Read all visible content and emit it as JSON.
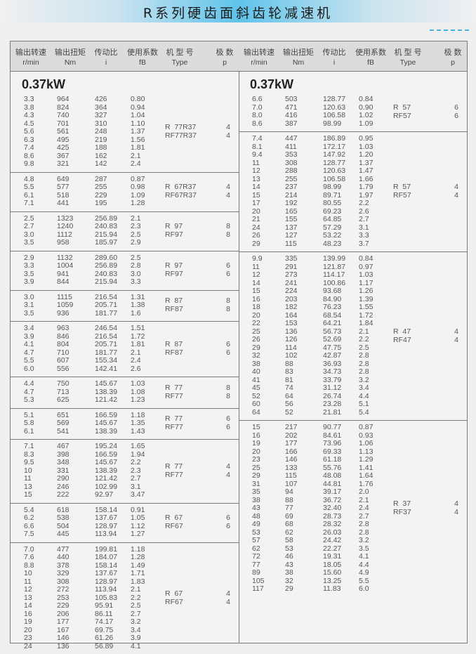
{
  "title": "R系列硬齿面斜齿轮减速机",
  "colors": {
    "banner_accent": "#5fc3ea",
    "dash_accent": "#3fb4dd",
    "header_bg": "#dcdcdc"
  },
  "headers": [
    {
      "zh": "输出转速",
      "en": "r/min"
    },
    {
      "zh": "输出扭矩",
      "en": "Nm"
    },
    {
      "zh": "传动比",
      "en": "i"
    },
    {
      "zh": "使用系数",
      "en": "fB"
    },
    {
      "zh": "机 型 号",
      "en": "Type"
    },
    {
      "zh": "极  数",
      "en": "p"
    }
  ],
  "left": {
    "power": "0.37kW",
    "groups": [
      {
        "type": [
          "R  77R37",
          "RF77R37"
        ],
        "poles": [
          "4",
          "4"
        ],
        "rows": [
          [
            "3.3",
            "964",
            "426",
            "0.80"
          ],
          [
            "3.8",
            "824",
            "364",
            "0.94"
          ],
          [
            "4.3",
            "740",
            "327",
            "1.04"
          ],
          [
            "4.5",
            "701",
            "310",
            "1.10"
          ],
          [
            "5.6",
            "561",
            "248",
            "1.37"
          ],
          [
            "6.3",
            "495",
            "219",
            "1.56"
          ],
          [
            "7.4",
            "425",
            "188",
            "1.81"
          ],
          [
            "8.6",
            "367",
            "162",
            "2.1"
          ],
          [
            "9.8",
            "321",
            "142",
            "2.4"
          ]
        ]
      },
      {
        "type": [
          "R  67R37",
          "RF67R37"
        ],
        "poles": [
          "4",
          "4"
        ],
        "rows": [
          [
            "4.8",
            "649",
            "287",
            "0.87"
          ],
          [
            "5.5",
            "577",
            "255",
            "0.98"
          ],
          [
            "6.1",
            "518",
            "229",
            "1.09"
          ],
          [
            "7.1",
            "441",
            "195",
            "1.28"
          ]
        ]
      },
      {
        "type": [
          "R  97",
          "RF97"
        ],
        "poles": [
          "8",
          "8"
        ],
        "rows": [
          [
            "2.5",
            "1323",
            "256.89",
            "2.1"
          ],
          [
            "2.7",
            "1240",
            "240.83",
            "2.3"
          ],
          [
            "3.0",
            "1112",
            "215.94",
            "2.5"
          ],
          [
            "3.5",
            "958",
            "185.97",
            "2.9"
          ]
        ]
      },
      {
        "type": [
          "R  97",
          "RF97"
        ],
        "poles": [
          "6",
          "6"
        ],
        "rows": [
          [
            "2.9",
            "1132",
            "289.60",
            "2.5"
          ],
          [
            "3.3",
            "1004",
            "256.89",
            "2.8"
          ],
          [
            "3.5",
            "941",
            "240.83",
            "3.0"
          ],
          [
            "3.9",
            "844",
            "215.94",
            "3.3"
          ]
        ]
      },
      {
        "type": [
          "R  87",
          "RF87"
        ],
        "poles": [
          "8",
          "8"
        ],
        "rows": [
          [
            "3.0",
            "1115",
            "216.54",
            "1.31"
          ],
          [
            "3.1",
            "1059",
            "205.71",
            "1.38"
          ],
          [
            "3.5",
            "936",
            "181.77",
            "1.6"
          ]
        ]
      },
      {
        "type": [
          "R  87",
          "RF87"
        ],
        "poles": [
          "6",
          "6"
        ],
        "rows": [
          [
            "3.4",
            "963",
            "246.54",
            "1.51"
          ],
          [
            "3.9",
            "846",
            "216.54",
            "1.72"
          ],
          [
            "4.1",
            "804",
            "205.71",
            "1.81"
          ],
          [
            "4.7",
            "710",
            "181.77",
            "2.1"
          ],
          [
            "5.5",
            "607",
            "155.34",
            "2.4"
          ],
          [
            "6.0",
            "556",
            "142.41",
            "2.6"
          ]
        ]
      },
      {
        "type": [
          "R  77",
          "RF77"
        ],
        "poles": [
          "8",
          "8"
        ],
        "rows": [
          [
            "4.4",
            "750",
            "145.67",
            "1.03"
          ],
          [
            "4.7",
            "713",
            "138.39",
            "1.08"
          ],
          [
            "5.3",
            "625",
            "121.42",
            "1.23"
          ]
        ]
      },
      {
        "type": [
          "R  77",
          "RF77"
        ],
        "poles": [
          "6",
          "6"
        ],
        "rows": [
          [
            "5.1",
            "651",
            "166.59",
            "1.18"
          ],
          [
            "5.8",
            "569",
            "145.67",
            "1.35"
          ],
          [
            "6.1",
            "541",
            "138.39",
            "1.43"
          ]
        ]
      },
      {
        "type": [
          "R  77",
          "RF77"
        ],
        "poles": [
          "4",
          "4"
        ],
        "rows": [
          [
            "7.1",
            "467",
            "195.24",
            "1.65"
          ],
          [
            "8.3",
            "398",
            "166.59",
            "1.94"
          ],
          [
            "9.5",
            "348",
            "145.67",
            "2.2"
          ],
          [
            "10",
            "331",
            "138.39",
            "2.3"
          ],
          [
            "11",
            "290",
            "121.42",
            "2.7"
          ],
          [
            "13",
            "246",
            "102.99",
            "3.1"
          ],
          [
            "15",
            "222",
            "92.97",
            "3.47"
          ]
        ]
      },
      {
        "type": [
          "R  67",
          "RF67"
        ],
        "poles": [
          "6",
          "6"
        ],
        "rows": [
          [
            "5.4",
            "618",
            "158.14",
            "0.91"
          ],
          [
            "6.2",
            "538",
            "137.67",
            "1.05"
          ],
          [
            "6.6",
            "504",
            "128.97",
            "1.12"
          ],
          [
            "7.5",
            "445",
            "113.94",
            "1.27"
          ]
        ]
      },
      {
        "type": [
          "R  67",
          "RF67"
        ],
        "poles": [
          "4",
          "4"
        ],
        "rows": [
          [
            "7.0",
            "477",
            "199.81",
            "1.18"
          ],
          [
            "7.6",
            "440",
            "184.07",
            "1.28"
          ],
          [
            "8.8",
            "378",
            "158.14",
            "1.49"
          ],
          [
            "10",
            "329",
            "137.67",
            "1.71"
          ],
          [
            "11",
            "308",
            "128.97",
            "1.83"
          ],
          [
            "12",
            "272",
            "113.94",
            "2.1"
          ],
          [
            "13",
            "253",
            "105.83",
            "2.2"
          ],
          [
            "14",
            "229",
            "95.91",
            "2.5"
          ],
          [
            "16",
            "206",
            "86.11",
            "2.7"
          ],
          [
            "19",
            "177",
            "74.17",
            "3.2"
          ],
          [
            "20",
            "167",
            "69.75",
            "3.4"
          ],
          [
            "23",
            "146",
            "61.26",
            "3.9"
          ],
          [
            "24",
            "136",
            "56.89",
            "4.1"
          ]
        ]
      }
    ]
  },
  "right": {
    "power": "0.37kW",
    "groups": [
      {
        "type": [
          "R  57",
          "RF57"
        ],
        "poles": [
          "6",
          "6"
        ],
        "rows": [
          [
            "6.6",
            "503",
            "128.77",
            "0.84"
          ],
          [
            "7.0",
            "471",
            "120.63",
            "0.90"
          ],
          [
            "8.0",
            "416",
            "106.58",
            "1.02"
          ],
          [
            "8.6",
            "387",
            "98.99",
            "1.09"
          ]
        ]
      },
      {
        "type": [
          "R  57",
          "RF57"
        ],
        "poles": [
          "4",
          "4"
        ],
        "rows": [
          [
            "7.4",
            "447",
            "186.89",
            "0.95"
          ],
          [
            "8.1",
            "411",
            "172.17",
            "1.03"
          ],
          [
            "9.4",
            "353",
            "147.92",
            "1.20"
          ],
          [
            "11",
            "308",
            "128.77",
            "1.37"
          ],
          [
            "12",
            "288",
            "120.63",
            "1.47"
          ],
          [
            "13",
            "255",
            "106.58",
            "1.66"
          ],
          [
            "14",
            "237",
            "98.99",
            "1.79"
          ],
          [
            "15",
            "214",
            "89.71",
            "1.97"
          ],
          [
            "17",
            "192",
            "80.55",
            "2.2"
          ],
          [
            "20",
            "165",
            "69.23",
            "2.6"
          ],
          [
            "21",
            "155",
            "64.85",
            "2.7"
          ],
          [
            "24",
            "137",
            "57.29",
            "3.1"
          ],
          [
            "26",
            "127",
            "53.22",
            "3.3"
          ],
          [
            "29",
            "115",
            "48.23",
            "3.7"
          ]
        ]
      },
      {
        "type": [
          "R  47",
          "RF47"
        ],
        "poles": [
          "4",
          "4"
        ],
        "rows": [
          [
            "9.9",
            "335",
            "139.99",
            "0.84"
          ],
          [
            "11",
            "291",
            "121.87",
            "0.97"
          ],
          [
            "12",
            "273",
            "114.17",
            "1.03"
          ],
          [
            "14",
            "241",
            "100.86",
            "1.17"
          ],
          [
            "15",
            "224",
            "93.68",
            "1.26"
          ],
          [
            "16",
            "203",
            "84.90",
            "1.39"
          ],
          [
            "18",
            "182",
            "76.23",
            "1.55"
          ],
          [
            "20",
            "164",
            "68.54",
            "1.72"
          ],
          [
            "22",
            "153",
            "64.21",
            "1.84"
          ],
          [
            "25",
            "136",
            "56.73",
            "2.1"
          ],
          [
            "26",
            "126",
            "52.69",
            "2.2"
          ],
          [
            "29",
            "114",
            "47.75",
            "2.5"
          ],
          [
            "32",
            "102",
            "42.87",
            "2.8"
          ],
          [
            "38",
            "88",
            "36.93",
            "2.8"
          ],
          [
            "40",
            "83",
            "34.73",
            "2.8"
          ],
          [
            "41",
            "81",
            "33.79",
            "3.2"
          ],
          [
            "45",
            "74",
            "31.12",
            "3.4"
          ],
          [
            "52",
            "64",
            "26.74",
            "4.4"
          ],
          [
            "60",
            "56",
            "23.28",
            "5.1"
          ],
          [
            "64",
            "52",
            "21.81",
            "5.4"
          ]
        ]
      },
      {
        "type": [
          "R  37",
          "RF37"
        ],
        "poles": [
          "4",
          "4"
        ],
        "rows": [
          [
            "15",
            "217",
            "90.77",
            "0.87"
          ],
          [
            "16",
            "202",
            "84.61",
            "0.93"
          ],
          [
            "19",
            "177",
            "73.96",
            "1.06"
          ],
          [
            "20",
            "166",
            "69.33",
            "1.13"
          ],
          [
            "23",
            "146",
            "61.18",
            "1.29"
          ],
          [
            "25",
            "133",
            "55.76",
            "1.41"
          ],
          [
            "29",
            "115",
            "48.08",
            "1.64"
          ],
          [
            "31",
            "107",
            "44.81",
            "1.76"
          ],
          [
            "35",
            "94",
            "39.17",
            "2.0"
          ],
          [
            "38",
            "88",
            "36.72",
            "2.1"
          ],
          [
            "43",
            "77",
            "32.40",
            "2.4"
          ],
          [
            "48",
            "69",
            "28.73",
            "2.7"
          ],
          [
            "49",
            "68",
            "28.32",
            "2.8"
          ],
          [
            "53",
            "62",
            "26.03",
            "2.8"
          ],
          [
            "57",
            "58",
            "24.42",
            "3.2"
          ],
          [
            "62",
            "53",
            "22.27",
            "3.5"
          ],
          [
            "72",
            "46",
            "19.31",
            "4.1"
          ],
          [
            "77",
            "43",
            "18.05",
            "4.4"
          ],
          [
            "89",
            "38",
            "15.60",
            "4.9"
          ],
          [
            "105",
            "32",
            "13.25",
            "5.5"
          ],
          [
            "117",
            "29",
            "11.83",
            "6.0"
          ]
        ]
      }
    ]
  }
}
